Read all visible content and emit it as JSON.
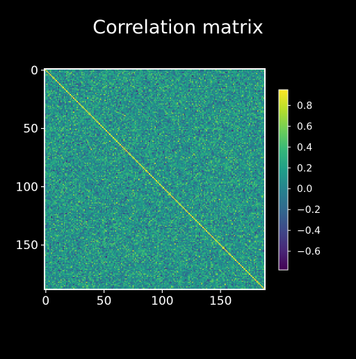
{
  "chart_data": {
    "type": "heatmap",
    "title": "Correlation matrix",
    "xlabel": "",
    "ylabel": "",
    "n": 188,
    "x_ticks": [
      0,
      50,
      100,
      150
    ],
    "y_ticks": [
      0,
      50,
      100,
      150
    ],
    "x_tick_labels": [
      "0",
      "50",
      "100",
      "150"
    ],
    "y_tick_labels": [
      "0",
      "50",
      "100",
      "150"
    ],
    "colormap": "viridis",
    "color_range": [
      -0.78,
      0.95
    ],
    "colorbar_ticks": [
      0.8,
      0.6,
      0.4,
      0.2,
      0.0,
      -0.2,
      -0.4,
      -0.6
    ],
    "colorbar_tick_labels": [
      "0.8",
      "0.6",
      "0.4",
      "0.2",
      "0.0",
      "−0.2",
      "−0.4",
      "−0.6"
    ],
    "value_distribution": {
      "mean": 0.12,
      "std": 0.2
    },
    "diagonal_value": 0.95,
    "grid": false
  },
  "colors": {
    "background": "#000000",
    "axes_frame": "#ffffff",
    "text": "#ffffff",
    "viridis_stops": [
      "#440154",
      "#482878",
      "#3e4989",
      "#31688e",
      "#26828e",
      "#1f9e89",
      "#35b779",
      "#6ece58",
      "#b5de2b",
      "#fde725"
    ]
  }
}
